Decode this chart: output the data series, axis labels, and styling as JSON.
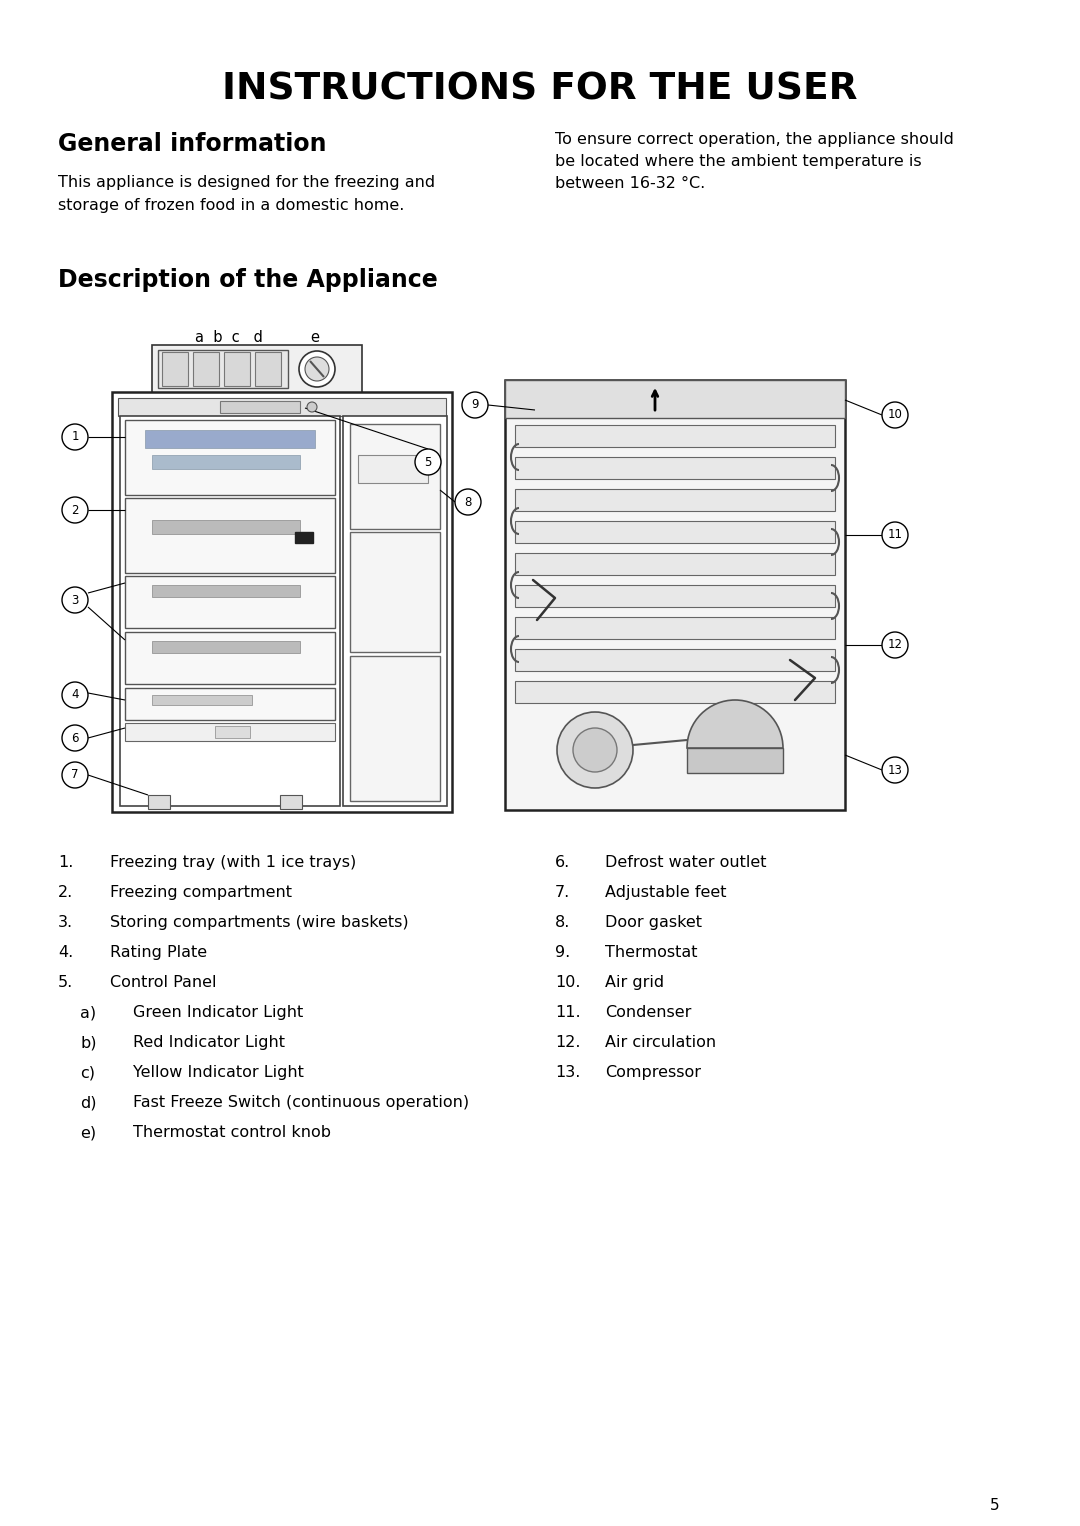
{
  "title": "INSTRUCTIONS FOR THE USER",
  "section1_title": "General information",
  "section1_left_line1": "This appliance is designed for the freezing and",
  "section1_left_line2": "storage of frozen food in a domestic home.",
  "section1_right_line1": "To ensure correct operation, the appliance should",
  "section1_right_line2": "be located where the ambient temperature is",
  "section1_right_line3": "between 16-32 °C.",
  "section2_title": "Description of the Appliance",
  "abcde_label": "a b c  d         e",
  "list_left": [
    [
      "1.",
      "Freezing tray (with 1 ice trays)"
    ],
    [
      "2.",
      "Freezing compartment"
    ],
    [
      "3.",
      "Storing compartments (wire baskets)"
    ],
    [
      "4.",
      "Rating Plate"
    ],
    [
      "5.",
      "Control Panel"
    ],
    [
      "   a)",
      "Green Indicator Light"
    ],
    [
      "   b)",
      "Red Indicator Light"
    ],
    [
      "   c)",
      "Yellow Indicator Light"
    ],
    [
      "   d)",
      "Fast Freeze Switch (continuous operation)"
    ],
    [
      "   e)",
      "Thermostat control knob"
    ]
  ],
  "list_right": [
    [
      "6.",
      "Defrost water outlet"
    ],
    [
      "7.",
      "Adjustable feet"
    ],
    [
      "8.",
      "Door gasket"
    ],
    [
      "9.",
      "Thermostat"
    ],
    [
      "10.",
      "Air grid"
    ],
    [
      "11.",
      "Condenser"
    ],
    [
      "12.",
      "Air circulation"
    ],
    [
      "13.",
      "Compressor"
    ]
  ],
  "page_number": "5",
  "bg_color": "#ffffff",
  "text_color": "#000000",
  "diagram_color": "#000000",
  "diagram_gray": "#888888",
  "diagram_lightgray": "#cccccc"
}
